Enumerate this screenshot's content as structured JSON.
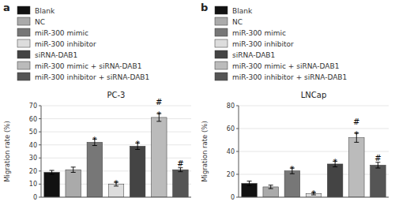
{
  "chart_data": [
    {
      "type": "bar",
      "panel_label": "a",
      "title": "PC-3",
      "ylabel": "Migration rate (%)",
      "categories": [
        "Blank",
        "NC",
        "miR-300 mimic",
        "miR-300 inhibitor",
        "siRNA-DAB1",
        "miR-300 mimic + siRNA-DAB1",
        "miR-300 inhibitor + siRNA-DAB1"
      ],
      "values": [
        19,
        21,
        42,
        10,
        39,
        61,
        21
      ],
      "errors": [
        1.5,
        2.0,
        2.5,
        1.5,
        2.5,
        3.0,
        1.5
      ],
      "colors": [
        "#111111",
        "#aaaaaa",
        "#777777",
        "#dddddd",
        "#444444",
        "#bbbbbb",
        "#555555"
      ],
      "annotations": [
        [],
        [],
        [
          "*"
        ],
        [
          "*"
        ],
        [
          "*"
        ],
        [
          "*",
          "#"
        ],
        [
          "#"
        ]
      ],
      "ylim": [
        0,
        70
      ],
      "yticks": [
        0,
        10,
        20,
        30,
        40,
        50,
        60,
        70
      ],
      "legend": "top",
      "tick_labels": "y"
    },
    {
      "type": "bar",
      "panel_label": "b",
      "title": "LNCap",
      "ylabel": "Migration rate (%)",
      "categories": [
        "Blank",
        "NC",
        "miR-300 mimic",
        "miR-300 inhibitor",
        "siRNA-DAB1",
        "miR-300 mimic + siRNA-DAB1",
        "miR-300 inhibitor + siRNA-DAB1"
      ],
      "values": [
        12,
        9,
        23,
        3,
        29,
        52,
        28
      ],
      "errors": [
        2.0,
        1.5,
        2.5,
        1.0,
        2.5,
        4.0,
        2.5
      ],
      "colors": [
        "#111111",
        "#aaaaaa",
        "#777777",
        "#dddddd",
        "#444444",
        "#bbbbbb",
        "#555555"
      ],
      "annotations": [
        [],
        [],
        [
          "*"
        ],
        [
          "*"
        ],
        [
          "*"
        ],
        [
          "*",
          "#"
        ],
        [
          "#"
        ]
      ],
      "ylim": [
        0,
        80
      ],
      "yticks": [
        0,
        20,
        40,
        60,
        80
      ],
      "legend": "top",
      "tick_labels": "y"
    }
  ]
}
